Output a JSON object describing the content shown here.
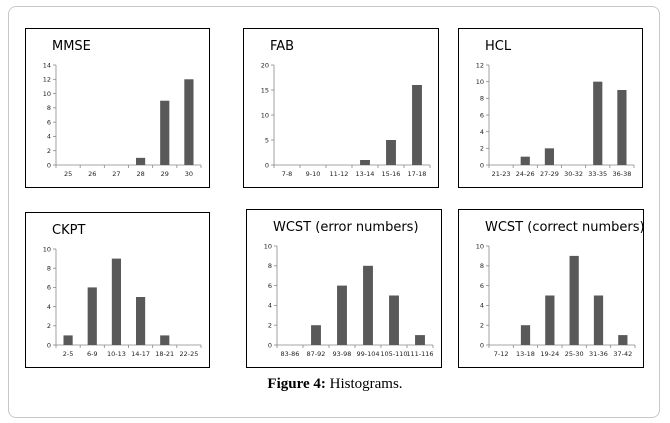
{
  "caption": {
    "label": "Figure 4:",
    "text": " Histograms."
  },
  "chart_data": [
    {
      "type": "bar",
      "title": "MMSE",
      "categories": [
        "25",
        "26",
        "27",
        "28",
        "29",
        "30"
      ],
      "values": [
        0,
        0,
        0,
        1,
        9,
        12
      ],
      "ylim": [
        0,
        14
      ],
      "yticks": [
        0,
        2,
        4,
        6,
        8,
        10,
        12,
        14
      ],
      "color": "#595959"
    },
    {
      "type": "bar",
      "title": "FAB",
      "categories": [
        "7-8",
        "9-10",
        "11-12",
        "13-14",
        "15-16",
        "17-18"
      ],
      "values": [
        0,
        0,
        0,
        1,
        5,
        16
      ],
      "ylim": [
        0,
        20
      ],
      "yticks": [
        0,
        5,
        10,
        15,
        20
      ],
      "color": "#595959"
    },
    {
      "type": "bar",
      "title": "HCL",
      "categories": [
        "21-23",
        "24-26",
        "27-29",
        "30-32",
        "33-35",
        "36-38"
      ],
      "values": [
        0,
        1,
        2,
        0,
        10,
        9
      ],
      "ylim": [
        0,
        12
      ],
      "yticks": [
        0,
        2,
        4,
        6,
        8,
        10,
        12
      ],
      "color": "#595959"
    },
    {
      "type": "bar",
      "title": "CKPT",
      "categories": [
        "2-5",
        "6-9",
        "10-13",
        "14-17",
        "18-21",
        "22-25"
      ],
      "values": [
        1,
        6,
        9,
        5,
        1,
        0
      ],
      "ylim": [
        0,
        10
      ],
      "yticks": [
        0,
        2,
        4,
        6,
        8,
        10
      ],
      "color": "#595959"
    },
    {
      "type": "bar",
      "title": "WCST (error numbers)",
      "categories": [
        "83-86",
        "87-92",
        "93-98",
        "99-104",
        "105-110",
        "111-116"
      ],
      "values": [
        0,
        2,
        6,
        8,
        5,
        1
      ],
      "ylim": [
        0,
        10
      ],
      "yticks": [
        0,
        2,
        4,
        6,
        8,
        10
      ],
      "color": "#595959"
    },
    {
      "type": "bar",
      "title": "WCST (correct numbers)",
      "categories": [
        "7-12",
        "13-18",
        "19-24",
        "25-30",
        "31-36",
        "37-42"
      ],
      "values": [
        0,
        2,
        5,
        9,
        5,
        1
      ],
      "ylim": [
        0,
        10
      ],
      "yticks": [
        0,
        2,
        4,
        6,
        8,
        10
      ],
      "color": "#595959"
    }
  ]
}
